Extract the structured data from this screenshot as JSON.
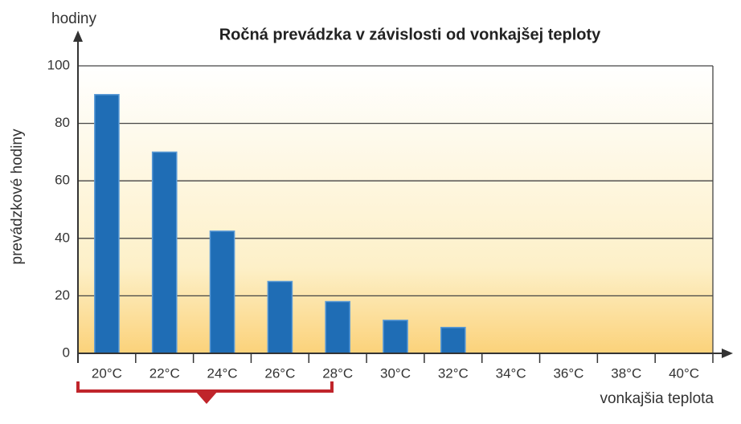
{
  "chart_data": {
    "type": "bar",
    "title": "Ročná prevádzka v závislosti od vonkajšej teploty",
    "y_axis_top_label": "hodiny",
    "ylabel": "prevádzkové hodiny",
    "xlabel": "vonkajšia teplota",
    "categories": [
      "20°C",
      "22°C",
      "24°C",
      "26°C",
      "28°C",
      "30°C",
      "32°C",
      "34°C",
      "36°C",
      "38°C",
      "40°C"
    ],
    "values": [
      90,
      70,
      42.5,
      25,
      18,
      11.5,
      9,
      0,
      0,
      0,
      0
    ],
    "color": "#1f6db5",
    "ylim": [
      0,
      100
    ],
    "yticks": [
      0,
      20,
      40,
      60,
      80,
      100
    ],
    "grid": true
  }
}
